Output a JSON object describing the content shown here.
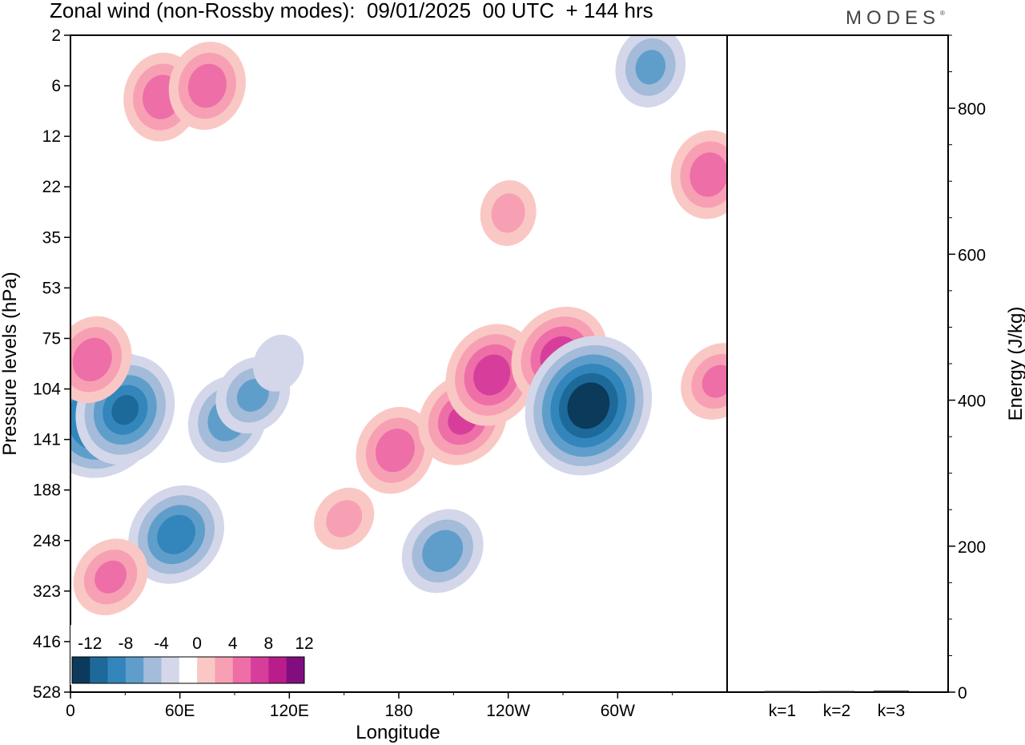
{
  "title": "Zonal wind (non-Rossby modes):  09/01/2025  00 UTC  + 144 hrs",
  "brand": "MODES",
  "brand_mark": "®",
  "chart_data": [
    {
      "type": "heatmap",
      "variable": "Zonal wind (non-Rossby modes)",
      "xlabel": "Longitude",
      "ylabel": "Pressure levels (hPa)",
      "x_ticks": [
        "0",
        "60E",
        "120E",
        "180",
        "120W",
        "60W"
      ],
      "y_ticks": [
        "2",
        "6",
        "12",
        "22",
        "35",
        "53",
        "75",
        "104",
        "141",
        "188",
        "248",
        "323",
        "416",
        "528"
      ],
      "colorbar": {
        "labels": [
          "-12",
          "-8",
          "-4",
          "0",
          "4",
          "8",
          "12"
        ],
        "levels": [
          -14,
          -12,
          -10,
          -8,
          -6,
          -4,
          -2,
          2,
          4,
          6,
          8,
          10,
          12,
          14
        ],
        "colors": [
          "#0b3a5a",
          "#1d6a9a",
          "#3286bb",
          "#5f9ecb",
          "#a4bbd9",
          "#d3d7e9",
          "#ffffff",
          "#fac8c4",
          "#f7a0b4",
          "#ee6ea8",
          "#d73e9c",
          "#b81d8a",
          "#800e7f"
        ]
      },
      "features": [
        {
          "lon": 18,
          "level": 121,
          "value": -13
        },
        {
          "lon": 30,
          "level": 118,
          "value": -10
        },
        {
          "lon": 58,
          "level": 240,
          "value": -9
        },
        {
          "lon": 86,
          "level": 125,
          "value": -7
        },
        {
          "lon": 100,
          "level": 108,
          "value": -6
        },
        {
          "lon": 114,
          "level": 88,
          "value": -3
        },
        {
          "lon": 150,
          "level": 220,
          "value": 4
        },
        {
          "lon": 178,
          "level": 150,
          "value": 7
        },
        {
          "lon": 215,
          "level": 125,
          "value": 8
        },
        {
          "lon": 231,
          "level": 95,
          "value": 9
        },
        {
          "lon": 268,
          "level": 84,
          "value": 9
        },
        {
          "lon": 284,
          "level": 115,
          "value": -14
        },
        {
          "lon": 204,
          "level": 262,
          "value": -7
        },
        {
          "lon": 12,
          "level": 86,
          "value": 7
        },
        {
          "lon": 22,
          "level": 300,
          "value": 6
        },
        {
          "lon": 50,
          "level": 7,
          "value": 7
        },
        {
          "lon": 75,
          "level": 6,
          "value": 7
        },
        {
          "lon": 350,
          "level": 19,
          "value": 7
        },
        {
          "lon": 318,
          "level": 4,
          "value": -6
        },
        {
          "lon": 240,
          "level": 28,
          "value": 4
        },
        {
          "lon": 355,
          "level": 99,
          "value": 6
        }
      ]
    },
    {
      "type": "bar",
      "categories": [
        "k=1",
        "k=2",
        "k=3"
      ],
      "values": [
        1.5,
        1.5,
        2
      ],
      "ylabel": "Energy (J/kg)",
      "ylim": [
        0,
        900
      ],
      "y_ticks": [
        0,
        200,
        400,
        600,
        800
      ]
    }
  ]
}
